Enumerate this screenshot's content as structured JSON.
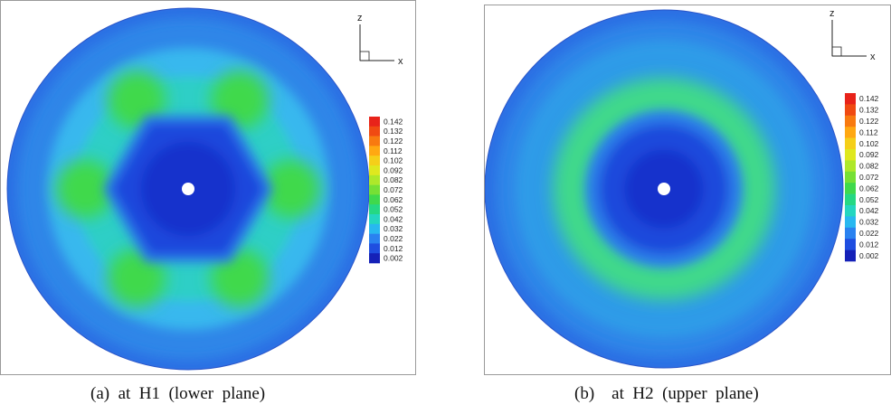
{
  "figure": {
    "panels": [
      {
        "id": "a",
        "caption": "(a)  at  H1  (lower  plane)",
        "axis_labels": {
          "vertical": "z",
          "horizontal": "x"
        },
        "pattern": "hexagonal-core"
      },
      {
        "id": "b",
        "caption": "(b)    at  H2  (upper  plane)",
        "axis_labels": {
          "vertical": "z",
          "horizontal": "x"
        },
        "pattern": "annular-ring"
      }
    ],
    "colorbar": {
      "levels": [
        "0.142",
        "0.132",
        "0.122",
        "0.112",
        "0.102",
        "0.092",
        "0.082",
        "0.072",
        "0.062",
        "0.052",
        "0.042",
        "0.032",
        "0.022",
        "0.012",
        "0.002"
      ],
      "colors": [
        "#e8231a",
        "#f04a12",
        "#f87a10",
        "#ffa812",
        "#f5cf19",
        "#dfe81f",
        "#aee82a",
        "#76e035",
        "#3fd94c",
        "#25d883",
        "#24d6c0",
        "#28b8f0",
        "#2a82f0",
        "#1f4ee0",
        "#1521b8"
      ]
    }
  }
}
